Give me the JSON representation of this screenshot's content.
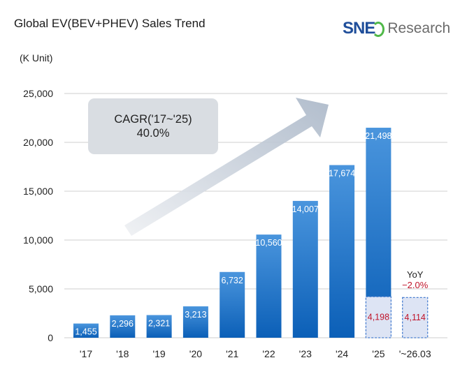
{
  "colors": {
    "bar_top": "#4a95dd",
    "bar_bottom": "#0b5fb7",
    "highlight_fill": "#dde4f4",
    "highlight_border": "#4a7fd0",
    "highlight_text": "#c0142a",
    "yoy_value": "#c0142a",
    "sne": "#1f4e9a",
    "logo_arc": "#4fb848",
    "research": "#6b6b6b",
    "cagr_box": "#d9dde2"
  },
  "logo": {
    "sne": "SNE",
    "research": "Research"
  },
  "chart_data": {
    "type": "bar",
    "title": "Global EV(BEV+PHEV) Sales Trend",
    "ylabel": "(K Unit)",
    "ylim": [
      0,
      25000
    ],
    "yticks": [
      "0",
      "5,000",
      "10,000",
      "15,000",
      "20,000",
      "25,000"
    ],
    "ytick_values": [
      0,
      5000,
      10000,
      15000,
      20000,
      25000
    ],
    "grid": true,
    "categories": [
      "'17",
      "'18",
      "'19",
      "'20",
      "'21",
      "'22",
      "'23",
      "'24",
      "'25",
      "'~26.03"
    ],
    "values": [
      1455,
      2296,
      2321,
      3213,
      6732,
      10560,
      14007,
      17674,
      21498,
      null
    ],
    "value_labels": [
      "1,455",
      "2,296",
      "2,321",
      "3,213",
      "6,732",
      "10,560",
      "14,007",
      "17,674",
      "21,498",
      ""
    ],
    "highlight": {
      "values": [
        null,
        null,
        null,
        null,
        null,
        null,
        null,
        null,
        4198,
        4114
      ],
      "labels": [
        "",
        "",
        "",
        "",
        "",
        "",
        "",
        "",
        "4,198",
        "4,114"
      ]
    },
    "annotations": {
      "cagr_label": "CAGR('17~'25)",
      "cagr_value": "40.0%",
      "yoy_label": "YoY",
      "yoy_value": "−2.0%"
    }
  }
}
